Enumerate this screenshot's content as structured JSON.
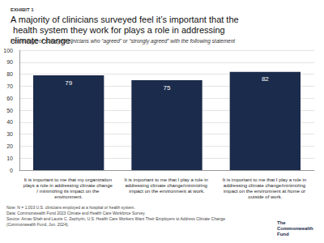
{
  "chart_data": {
    "type": "bar",
    "label": "EXHIBIT 1",
    "title": "A majority of clinicians surveyed feel it’s important that the health system they work for plays a role in addressing climate change.",
    "subtitle": "Percentage of surveyed clinicians who “agreed” or “strongly agreed” with the following statement",
    "categories": [
      "It is important to me that my organization plays a role in addressing climate change / minimizing its impact on the environment.",
      "It is important to me that I play a role in addressing climate change/minimizing impact on the environment at work.",
      "It is important to me that I play a role in addressing climate change/minimizing impact on the environment at home or outside of work."
    ],
    "values": [
      79,
      75,
      82
    ],
    "color": "#1b2b4b",
    "ylim": [
      0,
      100
    ],
    "yticks": [
      0,
      10,
      20,
      30,
      40,
      50,
      60,
      70,
      80,
      90,
      100
    ],
    "grid": true,
    "data_labels": true,
    "annotations": [
      "Note: N = 1,003 U.S. clinicians employed at a hospital or health system.",
      "Data: Commonwealth Fund 2023 Climate and Health Care Workforce Survey.",
      "Source: Arnav Shah and Laurie C. Zephyrin, U.S. Health Care Workers Want Their Employers to Address Climate Change (Commonwealth Fund, Jun. 2024).",
      "The Commonwealth Fund"
    ]
  }
}
